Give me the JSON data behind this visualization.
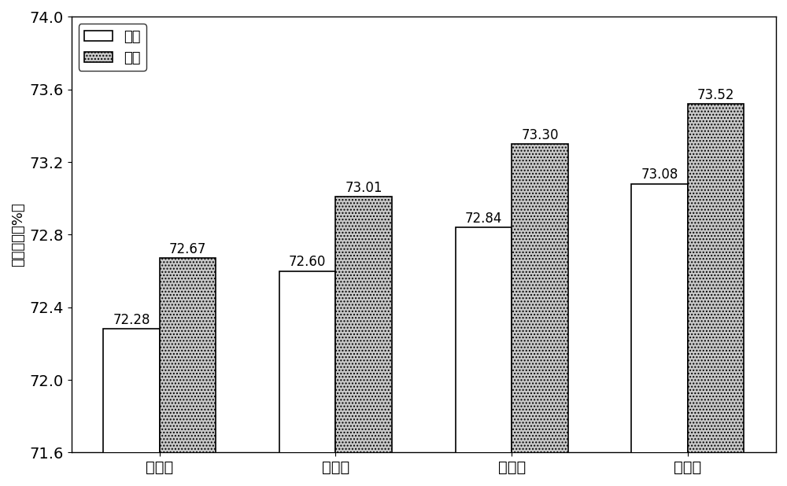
{
  "categories": [
    "一阶段",
    "二阶段",
    "三阶段",
    "四阶段"
  ],
  "series1_label": "一档",
  "series2_label": "二档",
  "series1_values": [
    72.28,
    72.6,
    72.84,
    73.08
  ],
  "series2_values": [
    72.67,
    73.01,
    73.3,
    73.52
  ],
  "ylabel": "转鼓强度（%）",
  "ylim": [
    71.6,
    74.0
  ],
  "yticks": [
    71.6,
    72.0,
    72.4,
    72.8,
    73.2,
    73.6,
    74.0
  ],
  "bar_width": 0.32,
  "series1_color": "#ffffff",
  "series2_color": "#c8c8c8",
  "series1_edgecolor": "#000000",
  "series2_edgecolor": "#000000",
  "series2_hatch": "....",
  "background_color": "#ffffff",
  "label_fontsize": 12,
  "tick_fontsize": 14,
  "ylabel_fontsize": 13,
  "legend_fontsize": 13
}
